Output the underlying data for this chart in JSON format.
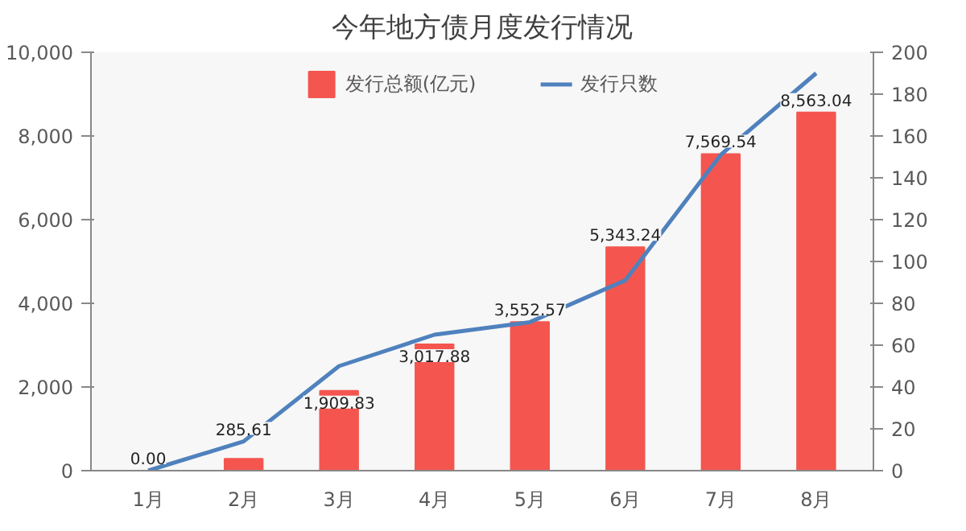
{
  "chart_data": {
    "type": "bar",
    "title": "今年地方债月度发行情况",
    "categories": [
      "1月",
      "2月",
      "3月",
      "4月",
      "5月",
      "6月",
      "7月",
      "8月"
    ],
    "series": [
      {
        "name": "发行总额(亿元)",
        "color": "#f4564f",
        "values": [
          0.0,
          285.61,
          1909.83,
          3017.88,
          3552.57,
          5343.24,
          7569.54,
          8563.04
        ],
        "value_labels": [
          "0.00",
          "285.61",
          "1,909.83",
          "3,017.88",
          "3,552.57",
          "5,343.24",
          "7,569.54",
          "8,563.04"
        ]
      },
      {
        "name": "发行只数",
        "type": "line",
        "axis": "y2",
        "color": "#4f81bd",
        "values": [
          0,
          14,
          50,
          65,
          71,
          91,
          151,
          190
        ]
      }
    ],
    "ylim": [
      0,
      10000
    ],
    "yticks": [
      {
        "value": 0,
        "label": "0"
      },
      {
        "value": 2000,
        "label": "2,000"
      },
      {
        "value": 4000,
        "label": "4,000"
      },
      {
        "value": 6000,
        "label": "6,000"
      },
      {
        "value": 8000,
        "label": "8,000"
      },
      {
        "value": 10000,
        "label": "10,000"
      }
    ],
    "y2lim": [
      0,
      200
    ],
    "y2ticks": [
      0,
      20,
      40,
      60,
      80,
      100,
      120,
      140,
      160,
      180,
      200
    ],
    "grid": false,
    "legend": "top",
    "marker": "none",
    "line_style": "solid"
  }
}
